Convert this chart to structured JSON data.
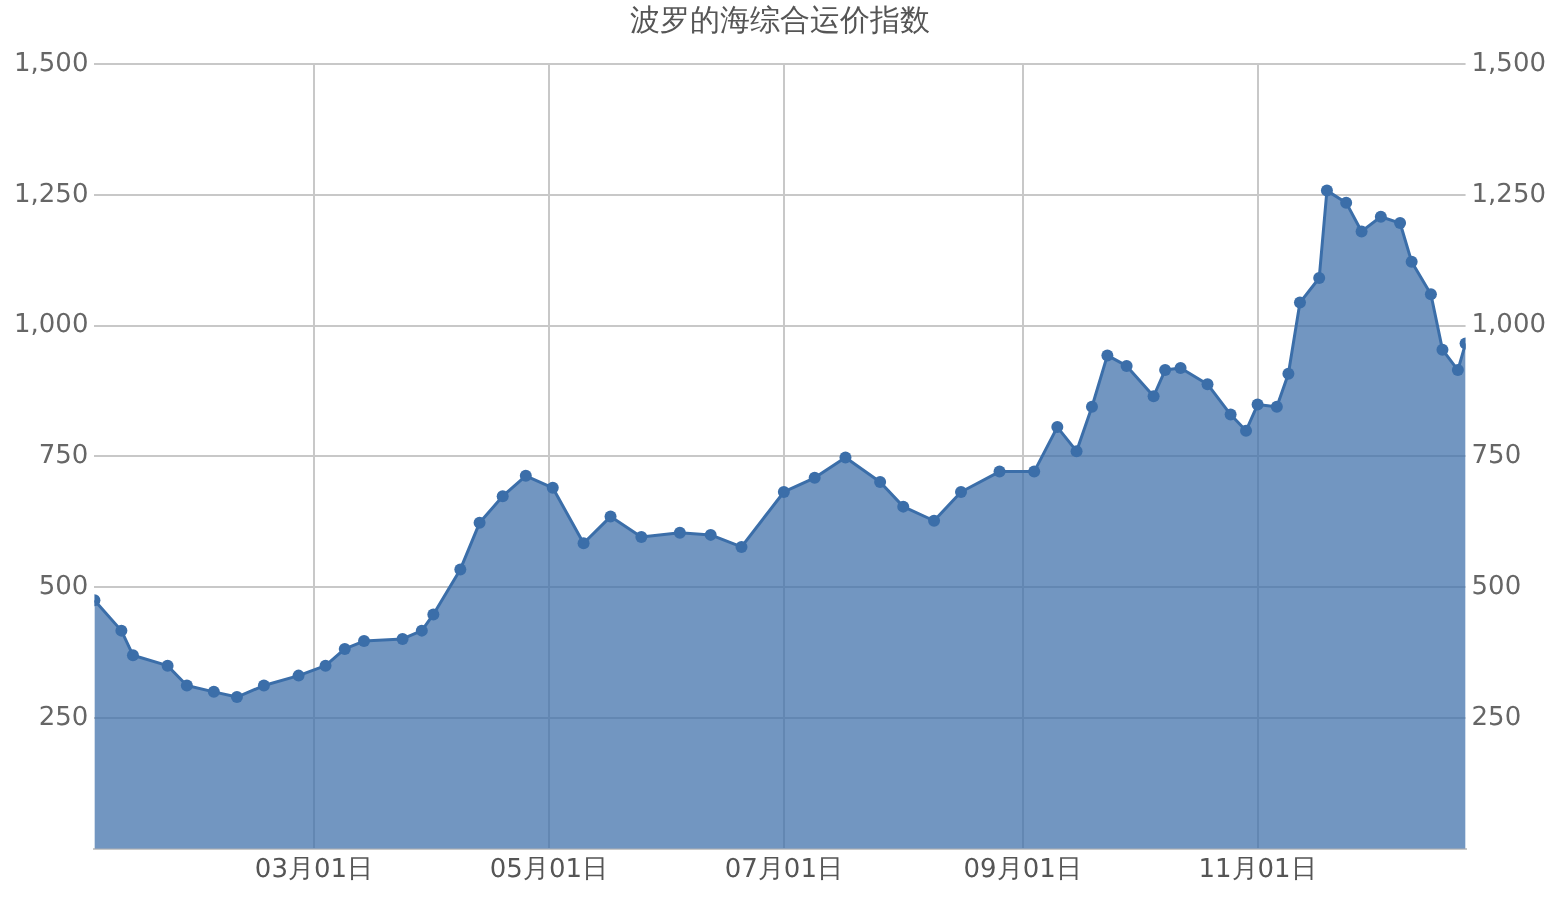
{
  "chart_data": {
    "type": "area",
    "title": "波罗的海综合运价指数",
    "x": [
      "--01-04",
      "--01-11",
      "--01-14",
      "--01-23",
      "--01-28",
      "--02-04",
      "--02-10",
      "--02-17",
      "--02-26",
      "--03-04",
      "--03-09",
      "--03-14",
      "--03-24",
      "--03-29",
      "--04-01",
      "--04-08",
      "--04-13",
      "--04-19",
      "--04-25",
      "--05-02",
      "--05-10",
      "--05-17",
      "--05-25",
      "--06-04",
      "--06-12",
      "--06-20",
      "--07-01",
      "--07-09",
      "--07-17",
      "--07-26",
      "--08-01",
      "--08-09",
      "--08-16",
      "--08-26",
      "--09-04",
      "--09-10",
      "--09-15",
      "--09-19",
      "--09-23",
      "--09-28",
      "--10-05",
      "--10-08",
      "--10-12",
      "--10-19",
      "--10-25",
      "--10-29",
      "--11-01",
      "--11-06",
      "--11-09",
      "--11-12",
      "--11-17",
      "--11-19",
      "--11-24",
      "--11-28",
      "--12-03",
      "--12-08",
      "--12-11",
      "--12-16",
      "--12-19",
      "--12-23",
      "--12-25"
    ],
    "series": [
      {
        "color": "#3b6ea9",
        "values": [
          475,
          417,
          370,
          350,
          312,
          300,
          290,
          312,
          331,
          350,
          382,
          397,
          401,
          417,
          448,
          534,
          623,
          674,
          713,
          690,
          584,
          635,
          596,
          604,
          600,
          577,
          682,
          709,
          748,
          701,
          654,
          627,
          682,
          721,
          721,
          806,
          760,
          845,
          943,
          923,
          865,
          915,
          919,
          888,
          830,
          799,
          849,
          845,
          908,
          1044,
          1091,
          1258,
          1235,
          1180,
          1208,
          1196,
          1122,
          1060,
          954,
          915,
          966
        ]
      }
    ],
    "xlim": [
      "--01-04",
      "--12-25"
    ],
    "xticks": [
      {
        "value": "--03-01",
        "label": "03月01日"
      },
      {
        "value": "--05-01",
        "label": "05月01日"
      },
      {
        "value": "--07-01",
        "label": "07月01日"
      },
      {
        "value": "--09-01",
        "label": "09月01日"
      },
      {
        "value": "--11-01",
        "label": "11月01日"
      }
    ],
    "ylim": [
      0,
      1500
    ],
    "yticks": [
      {
        "value": 250,
        "label": "250"
      },
      {
        "value": 500,
        "label": "500"
      },
      {
        "value": 750,
        "label": "750"
      },
      {
        "value": 1000,
        "label": "1,000"
      },
      {
        "value": 1250,
        "label": "1,250"
      },
      {
        "value": 1500,
        "label": "1,500"
      }
    ],
    "y2lim": [
      0,
      1500
    ],
    "y2ticks": [
      {
        "value": 250,
        "label": "250"
      },
      {
        "value": 500,
        "label": "500"
      },
      {
        "value": 750,
        "label": "750"
      },
      {
        "value": 1000,
        "label": "1,000"
      },
      {
        "value": 1250,
        "label": "1,250"
      },
      {
        "value": 1500,
        "label": "1,500"
      }
    ],
    "grid": true,
    "marker": "circle",
    "legend": false
  }
}
